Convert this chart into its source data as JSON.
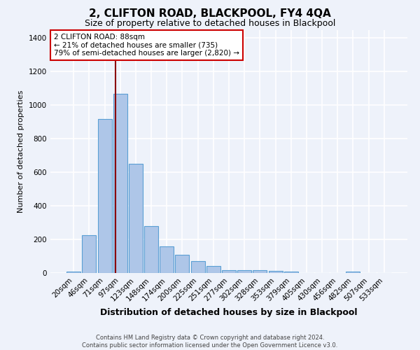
{
  "title": "2, CLIFTON ROAD, BLACKPOOL, FY4 4QA",
  "subtitle": "Size of property relative to detached houses in Blackpool",
  "xlabel": "Distribution of detached houses by size in Blackpool",
  "ylabel": "Number of detached properties",
  "categories": [
    "20sqm",
    "46sqm",
    "71sqm",
    "97sqm",
    "123sqm",
    "148sqm",
    "174sqm",
    "200sqm",
    "225sqm",
    "251sqm",
    "277sqm",
    "302sqm",
    "328sqm",
    "353sqm",
    "379sqm",
    "405sqm",
    "430sqm",
    "456sqm",
    "482sqm",
    "507sqm",
    "533sqm"
  ],
  "values": [
    10,
    225,
    920,
    1070,
    650,
    280,
    160,
    110,
    70,
    40,
    18,
    15,
    15,
    12,
    8,
    0,
    0,
    0,
    10,
    0,
    0
  ],
  "bar_color": "#aec6e8",
  "bar_edge_color": "#5a9fd4",
  "background_color": "#eef2fa",
  "grid_color": "#ffffff",
  "vline_color": "#8b0000",
  "vline_pos": 2.69,
  "annotation_text": "2 CLIFTON ROAD: 88sqm\n← 21% of detached houses are smaller (735)\n79% of semi-detached houses are larger (2,820) →",
  "annotation_box_color": "#ffffff",
  "annotation_box_edge": "#cc0000",
  "footer": "Contains HM Land Registry data © Crown copyright and database right 2024.\nContains public sector information licensed under the Open Government Licence v3.0.",
  "ylim": [
    0,
    1450
  ],
  "yticks": [
    0,
    200,
    400,
    600,
    800,
    1000,
    1200,
    1400
  ],
  "title_fontsize": 11,
  "subtitle_fontsize": 9,
  "xlabel_fontsize": 9,
  "ylabel_fontsize": 8,
  "tick_fontsize": 7.5,
  "footer_fontsize": 6,
  "annotation_fontsize": 7.5
}
